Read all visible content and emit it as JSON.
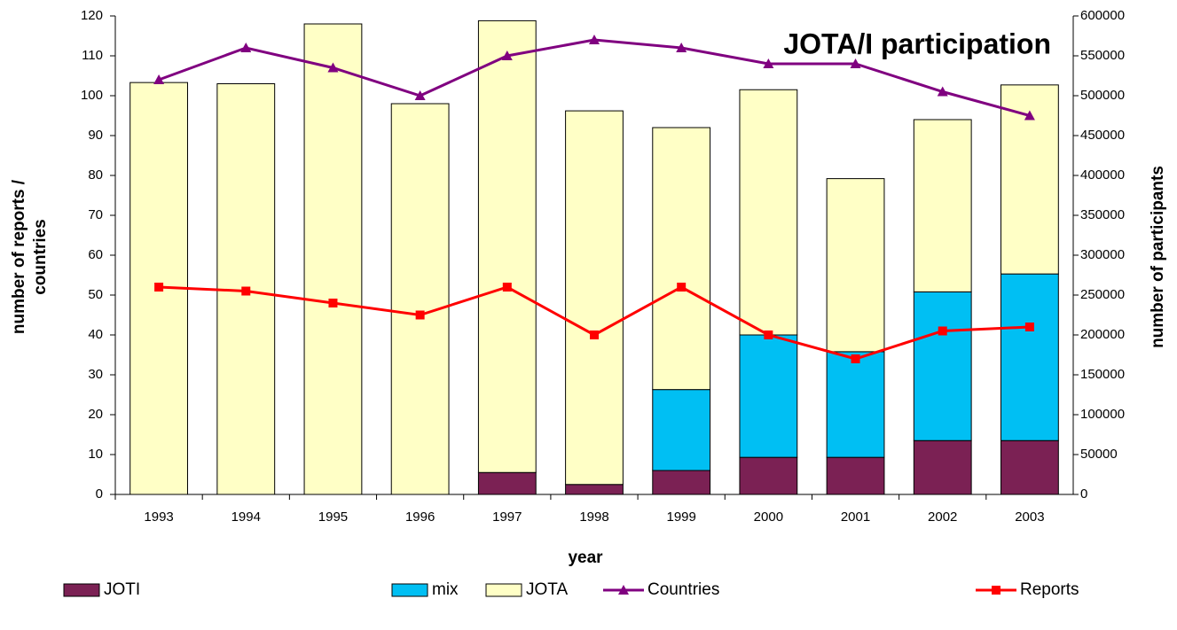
{
  "chart_data": {
    "type": "bar",
    "title": "JOTA/I participation",
    "xlabel": "year",
    "ylabel": [
      "number of reports /",
      "countries"
    ],
    "y2label": "number of participants",
    "categories": [
      "1993",
      "1994",
      "1995",
      "1996",
      "1997",
      "1998",
      "1999",
      "2000",
      "2001",
      "2002",
      "2003"
    ],
    "ylim": [
      0,
      120
    ],
    "yticks": [
      0,
      10,
      20,
      30,
      40,
      50,
      60,
      70,
      80,
      90,
      100,
      110,
      120
    ],
    "y2lim": [
      0,
      600000
    ],
    "y2ticks": [
      0,
      50000,
      100000,
      150000,
      200000,
      250000,
      300000,
      350000,
      400000,
      450000,
      500000,
      550000,
      600000
    ],
    "stacked": true,
    "legend": "bottom",
    "series": [
      {
        "name": "JOTI",
        "type": "bar",
        "axis": "y2",
        "color": "#7b2154",
        "values": [
          0,
          0,
          0,
          0,
          27500,
          12500,
          30000,
          46500,
          46500,
          67500,
          67500
        ]
      },
      {
        "name": "mix",
        "type": "bar",
        "axis": "y2",
        "color": "#00bff3",
        "values": [
          0,
          0,
          0,
          0,
          0,
          0,
          101500,
          153500,
          132500,
          186500,
          209000
        ]
      },
      {
        "name": "JOTA",
        "type": "bar",
        "axis": "y2",
        "color": "#ffffc6",
        "values": [
          516500,
          515000,
          590000,
          490000,
          566500,
          468500,
          328500,
          307500,
          217000,
          216000,
          237000
        ]
      },
      {
        "name": "Countries",
        "type": "line",
        "marker": "triangle",
        "color": "#800080",
        "values": [
          104,
          112,
          107,
          100,
          110,
          114,
          112,
          108,
          108,
          101,
          95
        ]
      },
      {
        "name": "Reports",
        "type": "line",
        "marker": "square",
        "color": "#ff0000",
        "values": [
          52,
          51,
          48,
          45,
          52,
          40,
          52,
          40,
          34,
          41,
          42
        ]
      }
    ]
  }
}
